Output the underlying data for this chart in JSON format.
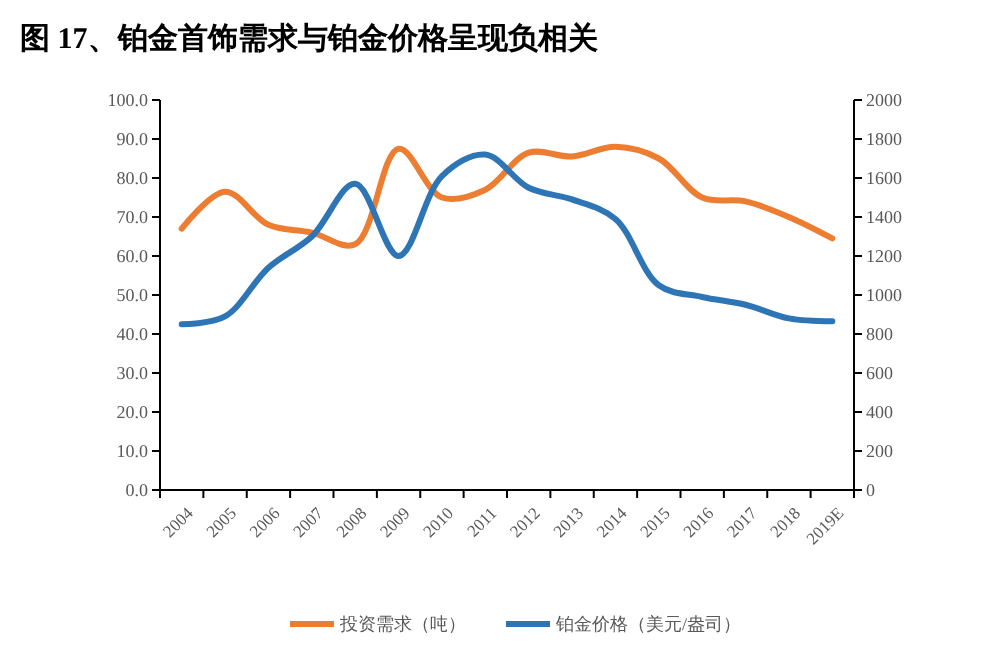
{
  "chart_data": {
    "type": "line",
    "title": "图 17、铂金首饰需求与铂金价格呈现负相关",
    "categories": [
      "2004",
      "2005",
      "2006",
      "2007",
      "2008",
      "2009",
      "2010",
      "2011",
      "2012",
      "2013",
      "2014",
      "2015",
      "2016",
      "2017",
      "2018",
      "2019E"
    ],
    "series": [
      {
        "name": "投资需求（吨）",
        "color": "#ed7d31",
        "values": [
          67,
          76.5,
          68,
          66,
          63,
          87.5,
          75,
          77,
          86.5,
          85.5,
          88,
          85,
          75,
          74,
          70,
          64.5
        ]
      },
      {
        "name": "铂金价格（美元/盎司）",
        "color": "#2e75b6",
        "axis": "y2",
        "values": [
          850,
          890,
          1140,
          1300,
          1570,
          1200,
          1610,
          1720,
          1550,
          1490,
          1390,
          1050,
          990,
          950,
          880,
          865
        ]
      }
    ],
    "ylim": [
      0,
      100
    ],
    "yticks": [
      {
        "value": 0,
        "label": "0.0"
      },
      {
        "value": 10,
        "label": "10.0"
      },
      {
        "value": 20,
        "label": "20.0"
      },
      {
        "value": 30,
        "label": "30.0"
      },
      {
        "value": 40,
        "label": "40.0"
      },
      {
        "value": 50,
        "label": "50.0"
      },
      {
        "value": 60,
        "label": "60.0"
      },
      {
        "value": 70,
        "label": "70.0"
      },
      {
        "value": 80,
        "label": "80.0"
      },
      {
        "value": 90,
        "label": "90.0"
      },
      {
        "value": 100,
        "label": "100.0"
      }
    ],
    "y2lim": [
      0,
      2000
    ],
    "y2ticks": [
      0,
      200,
      400,
      600,
      800,
      1000,
      1200,
      1400,
      1600,
      1800,
      2000
    ],
    "legend": "bottom",
    "grid": false,
    "marker": "none",
    "line_style": "solid"
  }
}
